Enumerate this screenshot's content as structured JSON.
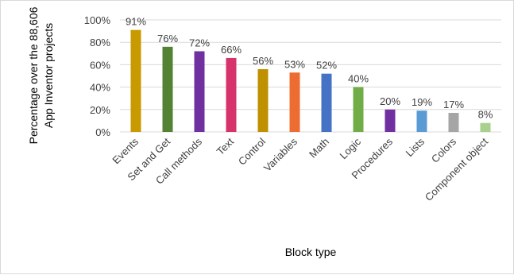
{
  "chart_data": {
    "type": "bar",
    "categories": [
      "Events",
      "Set and Get",
      "Call methods",
      "Text",
      "Control",
      "Variables",
      "Math",
      "Logic",
      "Procedures",
      "Lists",
      "Colors",
      "Component object"
    ],
    "values": [
      91,
      76,
      72,
      66,
      56,
      53,
      52,
      40,
      20,
      19,
      17,
      8
    ],
    "value_labels": [
      "91%",
      "76%",
      "72%",
      "66%",
      "56%",
      "53%",
      "52%",
      "40%",
      "20%",
      "19%",
      "17%",
      "8%"
    ],
    "colors": [
      "#c89a00",
      "#548235",
      "#7030a0",
      "#d6336c",
      "#bf9000",
      "#ed6c32",
      "#4472c4",
      "#70ad47",
      "#7030a0",
      "#5b9bd5",
      "#a5a5a5",
      "#a9d18e"
    ],
    "title": "",
    "xlabel": "Block type",
    "ylabel_lines": [
      "Percentage over the 88,606",
      "App Inventor projects"
    ],
    "ylim": [
      0,
      100
    ],
    "yticks": [
      0,
      20,
      40,
      60,
      80,
      100
    ],
    "ytick_labels": [
      "0%",
      "20%",
      "40%",
      "60%",
      "80%",
      "100%"
    ],
    "grid": true,
    "legend": "none"
  }
}
